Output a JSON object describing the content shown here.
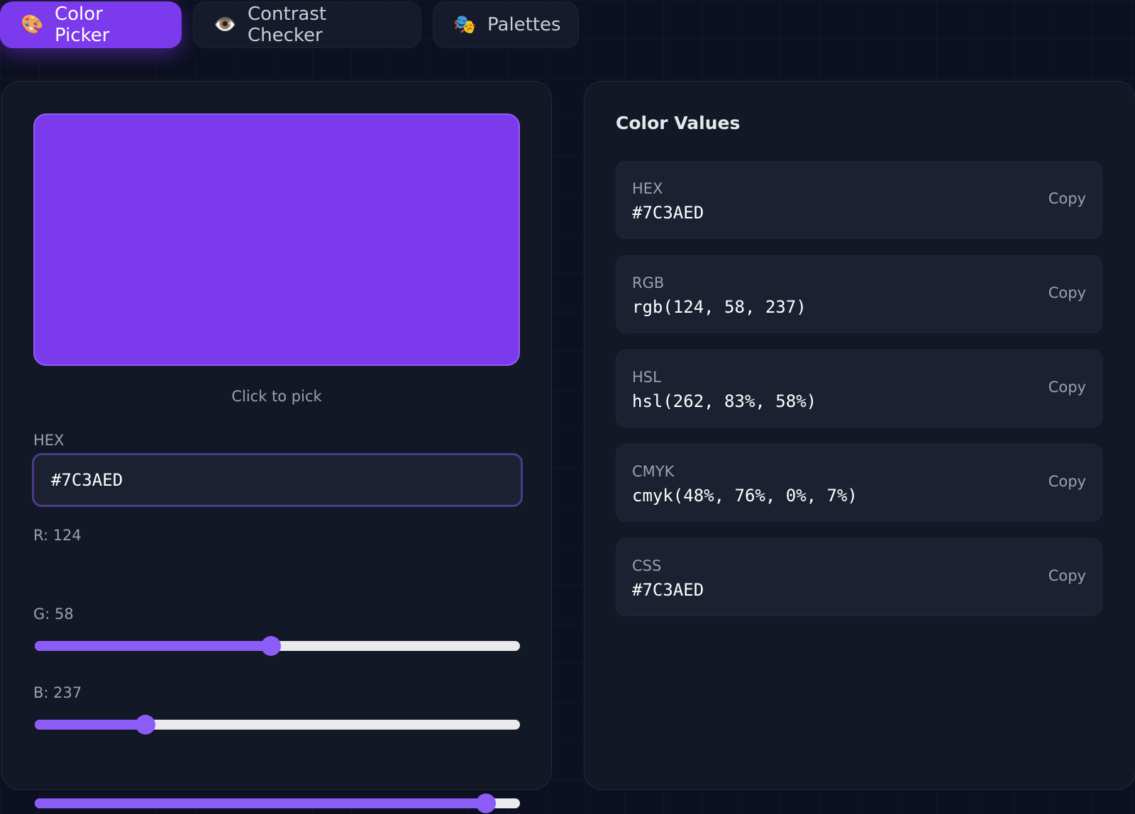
{
  "colors": {
    "accent": "#7c3aed",
    "current": "#7C3AED"
  },
  "tabs": [
    {
      "label": "Color Picker",
      "icon": "🎨",
      "icon_name": "palette-icon",
      "active": true
    },
    {
      "label": "Contrast Checker",
      "icon": "👁️",
      "icon_name": "eye-icon",
      "active": false
    },
    {
      "label": "Palettes",
      "icon": "🎭",
      "icon_name": "masks-icon",
      "active": false
    }
  ],
  "picker": {
    "hint": "Click to pick",
    "hex_label": "HEX",
    "hex_value": "#7C3AED",
    "sliders": {
      "r": {
        "label": "R: 124",
        "value": 124,
        "max": 255
      },
      "g": {
        "label": "G: 58",
        "value": 58,
        "max": 255
      },
      "b": {
        "label": "B: 237",
        "value": 237,
        "max": 255
      }
    }
  },
  "values": {
    "title": "Color Values",
    "copy_label": "Copy",
    "rows": [
      {
        "label": "HEX",
        "value": "#7C3AED"
      },
      {
        "label": "RGB",
        "value": "rgb(124, 58, 237)"
      },
      {
        "label": "HSL",
        "value": "hsl(262, 83%, 58%)"
      },
      {
        "label": "CMYK",
        "value": "cmyk(48%, 76%, 0%, 7%)"
      },
      {
        "label": "CSS",
        "value": "#7C3AED"
      }
    ]
  }
}
